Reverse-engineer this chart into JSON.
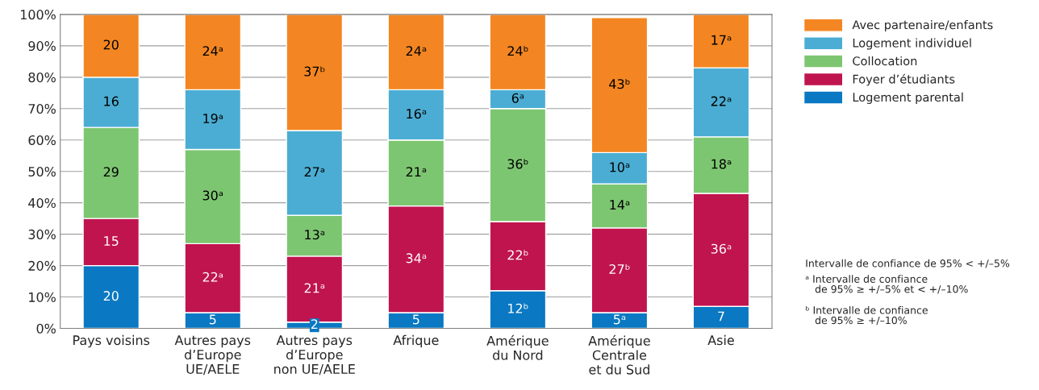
{
  "chart_data": {
    "type": "bar",
    "stacked": true,
    "categories": [
      "Pays voisins",
      "Autres pays\nd’Europe\nUE/AELE",
      "Autres pays\nd’Europe\nnon UE/AELE",
      "Afrique",
      "Amérique\ndu Nord",
      "Amérique\nCentrale\net du Sud",
      "Asie"
    ],
    "series": [
      {
        "name": "Logement parental",
        "color": "#0a78c2",
        "values": [
          20,
          5,
          2,
          5,
          12,
          5,
          7
        ],
        "value_labels": [
          "20",
          "5",
          "2",
          "5",
          "12ᵇ",
          "5ᵃ",
          "7"
        ]
      },
      {
        "name": "Foyer d’étudiants",
        "color": "#c0144f",
        "values": [
          15,
          22,
          21,
          34,
          22,
          27,
          36
        ],
        "value_labels": [
          "15",
          "22ᵃ",
          "21ᵃ",
          "34ᵃ",
          "22ᵇ",
          "27ᵇ",
          "36ᵃ"
        ]
      },
      {
        "name": "Collocation",
        "color": "#7dc671",
        "values": [
          29,
          30,
          13,
          21,
          36,
          14,
          18
        ],
        "value_labels": [
          "29",
          "30ᵃ",
          "13ᵃ",
          "21ᵃ",
          "36ᵇ",
          "14ᵃ",
          "18ᵃ"
        ]
      },
      {
        "name": "Logement individuel",
        "color": "#4badd3",
        "values": [
          16,
          19,
          27,
          16,
          6,
          10,
          22
        ],
        "value_labels": [
          "16",
          "19ᵃ",
          "27ᵃ",
          "16ᵃ",
          "6ᵃ",
          "10ᵃ",
          "22ᵃ"
        ]
      },
      {
        "name": "Avec partenaire/enfants",
        "color": "#f38622",
        "values": [
          20,
          24,
          37,
          24,
          24,
          43,
          17
        ],
        "value_labels": [
          "20",
          "24ᵃ",
          "37ᵇ",
          "24ᵃ",
          "24ᵇ",
          "43ᵇ",
          "17ᵃ"
        ]
      }
    ],
    "ylim": [
      0,
      100
    ],
    "yticks": [
      {
        "value": 0,
        "label": "0%"
      },
      {
        "value": 10,
        "label": "10%"
      },
      {
        "value": 20,
        "label": "20%"
      },
      {
        "value": 30,
        "label": "30%"
      },
      {
        "value": 40,
        "label": "40%"
      },
      {
        "value": 50,
        "label": "50%"
      },
      {
        "value": 60,
        "label": "60%"
      },
      {
        "value": 70,
        "label": "70%"
      },
      {
        "value": 80,
        "label": "80%"
      },
      {
        "value": 90,
        "label": "90%"
      },
      {
        "value": 100,
        "label": "100%"
      }
    ],
    "grid": "y",
    "legend": "top right",
    "annotations": [
      "Intervalle de confiance de 95% < +/–5%",
      "ᵃ Intervalle de confiance\n   de 95% ≥ +/–5% et < +/–10%",
      "ᵇ Intervalle de confiance\n   de 95% ≥ +/–10%"
    ]
  }
}
